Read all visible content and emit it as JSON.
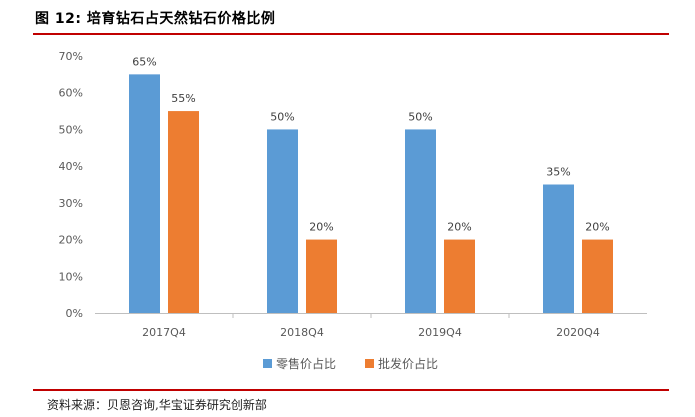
{
  "figure_title": "图 12: 培育钻石占天然钻石价格比例",
  "source": "资料来源：贝恩咨询,华宝证券研究创新部",
  "colors": {
    "retail": "#5b9bd5",
    "wholesale": "#ed7d31",
    "accent_rule": "#c00000"
  },
  "chart_data": {
    "type": "bar",
    "categories": [
      "2017Q4",
      "2018Q4",
      "2019Q4",
      "2020Q4"
    ],
    "series": [
      {
        "name": "零售价占比",
        "values": [
          65,
          50,
          50,
          35
        ],
        "labels": [
          "65%",
          "50%",
          "50%",
          "35%"
        ]
      },
      {
        "name": "批发价占比",
        "values": [
          55,
          20,
          20,
          20
        ],
        "labels": [
          "55%",
          "20%",
          "20%",
          "20%"
        ]
      }
    ],
    "y_ticks": [
      "0%",
      "10%",
      "20%",
      "30%",
      "40%",
      "50%",
      "60%",
      "70%"
    ],
    "ylim": [
      0,
      70
    ],
    "grid": false,
    "legend_position": "bottom"
  }
}
